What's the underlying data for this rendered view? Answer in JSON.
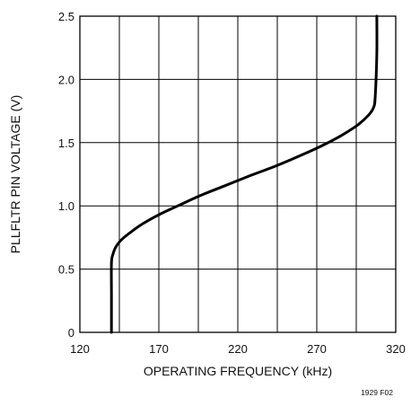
{
  "chart_data": {
    "type": "line",
    "title": "",
    "xlabel": "OPERATING FREQUENCY (kHz)",
    "ylabel": "PLLFLTR PIN VOLTAGE (V)",
    "xlim": [
      120,
      320
    ],
    "ylim": [
      0,
      2.5
    ],
    "x_ticks": [
      120,
      170,
      220,
      270,
      320
    ],
    "x_tick_labels": [
      "120",
      "170",
      "220",
      "270",
      "320"
    ],
    "y_ticks": [
      0,
      0.5,
      1.0,
      1.5,
      2.0,
      2.5
    ],
    "y_tick_labels": [
      "0",
      "0.5",
      "1.0",
      "1.5",
      "2.0",
      "2.5"
    ],
    "x_grid_values": [
      120,
      145,
      170,
      195,
      220,
      245,
      270,
      295,
      320
    ],
    "grid": true,
    "line_color": "#000000",
    "series": [
      {
        "x": [
          140,
          140,
          140,
          141,
          143,
          147,
          153,
          160,
          170,
          182,
          196,
          212,
          228,
          245,
          260,
          274,
          286,
          296,
          303,
          306,
          307,
          308,
          308
        ],
        "y": [
          0,
          0.3,
          0.55,
          0.62,
          0.68,
          0.74,
          0.8,
          0.86,
          0.93,
          1.0,
          1.08,
          1.16,
          1.24,
          1.32,
          1.4,
          1.48,
          1.56,
          1.64,
          1.72,
          1.78,
          1.86,
          2.2,
          2.5
        ]
      }
    ],
    "figure_id": "1929 F02"
  }
}
